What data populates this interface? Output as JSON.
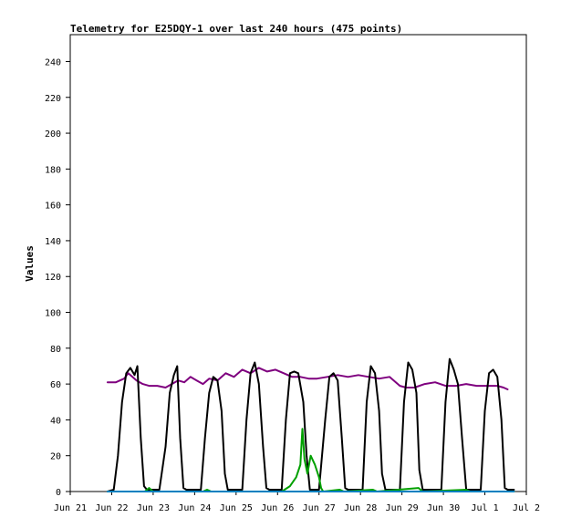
{
  "chart_data": {
    "type": "line",
    "title": "Telemetry for E25DQY-1 over last 240 hours (475 points)",
    "xlabel": "",
    "ylabel": "Values",
    "ylim": [
      0,
      255
    ],
    "yticks": [
      0,
      20,
      40,
      60,
      80,
      100,
      120,
      140,
      160,
      180,
      200,
      220,
      240
    ],
    "xlim": [
      0,
      11
    ],
    "x_tick_labels": [
      "Jun 21",
      "Jun 22",
      "Jun 23",
      "Jun 24",
      "Jun 25",
      "Jun 26",
      "Jun 27",
      "Jun 28",
      "Jun 29",
      "Jun 30",
      "Jul 1",
      "Jul 2"
    ],
    "grid": false,
    "legend": "none",
    "series": [
      {
        "color": "#7f007f",
        "points": [
          [
            0.9,
            61
          ],
          [
            1.1,
            61
          ],
          [
            1.2,
            62
          ],
          [
            1.3,
            63
          ],
          [
            1.4,
            66
          ],
          [
            1.5,
            64
          ],
          [
            1.6,
            62
          ],
          [
            1.75,
            60
          ],
          [
            1.9,
            59
          ],
          [
            2.1,
            59
          ],
          [
            2.3,
            58
          ],
          [
            2.45,
            60
          ],
          [
            2.6,
            62
          ],
          [
            2.75,
            61
          ],
          [
            2.9,
            64
          ],
          [
            3.05,
            62
          ],
          [
            3.2,
            60
          ],
          [
            3.35,
            63
          ],
          [
            3.55,
            62
          ],
          [
            3.75,
            66
          ],
          [
            3.95,
            64
          ],
          [
            4.15,
            68
          ],
          [
            4.35,
            66
          ],
          [
            4.55,
            69
          ],
          [
            4.75,
            67
          ],
          [
            4.95,
            68
          ],
          [
            5.15,
            66
          ],
          [
            5.35,
            64
          ],
          [
            5.55,
            64
          ],
          [
            5.75,
            63
          ],
          [
            5.95,
            63
          ],
          [
            6.2,
            64
          ],
          [
            6.45,
            65
          ],
          [
            6.7,
            64
          ],
          [
            6.95,
            65
          ],
          [
            7.2,
            64
          ],
          [
            7.45,
            63
          ],
          [
            7.7,
            64
          ],
          [
            7.95,
            59
          ],
          [
            8.1,
            58
          ],
          [
            8.3,
            58
          ],
          [
            8.55,
            60
          ],
          [
            8.8,
            61
          ],
          [
            9.05,
            59
          ],
          [
            9.3,
            59
          ],
          [
            9.55,
            60
          ],
          [
            9.8,
            59
          ],
          [
            10.05,
            59
          ],
          [
            10.3,
            59
          ],
          [
            10.45,
            58
          ],
          [
            10.55,
            57
          ]
        ]
      },
      {
        "color": "#000000",
        "points": [
          [
            0.9,
            0
          ],
          [
            1.05,
            1
          ],
          [
            1.15,
            20
          ],
          [
            1.25,
            50
          ],
          [
            1.35,
            66
          ],
          [
            1.45,
            69
          ],
          [
            1.55,
            65
          ],
          [
            1.62,
            70
          ],
          [
            1.7,
            30
          ],
          [
            1.78,
            3
          ],
          [
            1.85,
            1
          ],
          [
            2.15,
            1
          ],
          [
            2.3,
            25
          ],
          [
            2.4,
            55
          ],
          [
            2.5,
            65
          ],
          [
            2.58,
            70
          ],
          [
            2.65,
            30
          ],
          [
            2.73,
            2
          ],
          [
            2.8,
            1
          ],
          [
            3.15,
            1
          ],
          [
            3.25,
            30
          ],
          [
            3.35,
            55
          ],
          [
            3.45,
            64
          ],
          [
            3.55,
            62
          ],
          [
            3.65,
            45
          ],
          [
            3.73,
            10
          ],
          [
            3.8,
            1
          ],
          [
            4.15,
            1
          ],
          [
            4.25,
            40
          ],
          [
            4.35,
            66
          ],
          [
            4.45,
            72
          ],
          [
            4.55,
            60
          ],
          [
            4.65,
            25
          ],
          [
            4.73,
            2
          ],
          [
            4.8,
            1
          ],
          [
            5.1,
            1
          ],
          [
            5.2,
            40
          ],
          [
            5.3,
            66
          ],
          [
            5.4,
            67
          ],
          [
            5.5,
            66
          ],
          [
            5.62,
            50
          ],
          [
            5.7,
            20
          ],
          [
            5.78,
            1
          ],
          [
            6.0,
            1
          ],
          [
            6.15,
            40
          ],
          [
            6.25,
            64
          ],
          [
            6.35,
            66
          ],
          [
            6.45,
            62
          ],
          [
            6.55,
            30
          ],
          [
            6.63,
            2
          ],
          [
            6.7,
            1
          ],
          [
            7.05,
            1
          ],
          [
            7.15,
            50
          ],
          [
            7.25,
            70
          ],
          [
            7.35,
            66
          ],
          [
            7.45,
            45
          ],
          [
            7.52,
            10
          ],
          [
            7.6,
            1
          ],
          [
            7.95,
            1
          ],
          [
            8.05,
            50
          ],
          [
            8.15,
            72
          ],
          [
            8.25,
            68
          ],
          [
            8.35,
            55
          ],
          [
            8.42,
            12
          ],
          [
            8.5,
            1
          ],
          [
            8.95,
            1
          ],
          [
            9.05,
            50
          ],
          [
            9.15,
            74
          ],
          [
            9.25,
            68
          ],
          [
            9.35,
            60
          ],
          [
            9.45,
            30
          ],
          [
            9.55,
            1
          ],
          [
            9.9,
            1
          ],
          [
            10.0,
            45
          ],
          [
            10.1,
            66
          ],
          [
            10.2,
            68
          ],
          [
            10.3,
            64
          ],
          [
            10.4,
            40
          ],
          [
            10.48,
            2
          ],
          [
            10.55,
            1
          ],
          [
            10.7,
            1
          ]
        ]
      },
      {
        "color": "#00a000",
        "points": [
          [
            0.9,
            0
          ],
          [
            1.8,
            0
          ],
          [
            1.9,
            2
          ],
          [
            2.0,
            0
          ],
          [
            3.2,
            0
          ],
          [
            3.3,
            1
          ],
          [
            3.4,
            0
          ],
          [
            5.1,
            0
          ],
          [
            5.3,
            3
          ],
          [
            5.45,
            8
          ],
          [
            5.55,
            15
          ],
          [
            5.6,
            35
          ],
          [
            5.65,
            18
          ],
          [
            5.72,
            10
          ],
          [
            5.8,
            20
          ],
          [
            5.9,
            15
          ],
          [
            6.0,
            8
          ],
          [
            6.05,
            2
          ],
          [
            6.1,
            0
          ],
          [
            6.5,
            1
          ],
          [
            6.6,
            0
          ],
          [
            7.3,
            1
          ],
          [
            7.4,
            0
          ],
          [
            8.4,
            2
          ],
          [
            8.5,
            0
          ],
          [
            9.55,
            1
          ],
          [
            9.65,
            0
          ],
          [
            10.7,
            0
          ]
        ]
      },
      {
        "color": "#0080c0",
        "points": [
          [
            0.9,
            0
          ],
          [
            10.7,
            0
          ]
        ]
      }
    ]
  }
}
